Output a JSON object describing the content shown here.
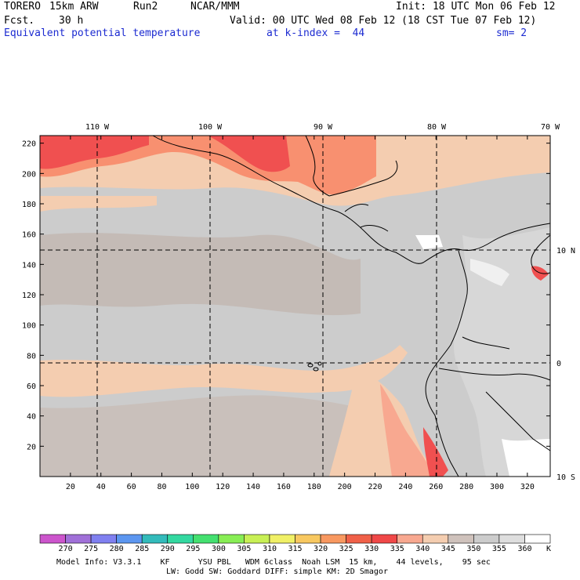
{
  "header": {
    "model": "TORERO",
    "resolution": "15km ARW",
    "run": "Run2",
    "org": "NCAR/MMM",
    "init": "Init: 18 UTC Mon 06 Feb 12",
    "fcst_label": "Fcst.",
    "fcst_value": "30 h",
    "valid": "Valid: 00 UTC Wed 08 Feb 12 (18 CST Tue 07 Feb 12)",
    "field": "Equivalent potential temperature",
    "level": "at k-index =  44",
    "smoothing": "sm= 2"
  },
  "map": {
    "lon_labels": [
      "110 W",
      "100 W",
      "90 W",
      "80 W",
      "70 W"
    ],
    "lat_labels": [
      "10 N",
      "0",
      "10 S"
    ],
    "y_ticks": [
      "220",
      "200",
      "180",
      "160",
      "140",
      "120",
      "100",
      "80",
      "60",
      "40",
      "20"
    ],
    "x_ticks": [
      "20",
      "40",
      "60",
      "80",
      "100",
      "120",
      "140",
      "160",
      "180",
      "200",
      "220",
      "240",
      "260",
      "280",
      "300",
      "320"
    ],
    "x_range": [
      0,
      335
    ],
    "y_range": [
      0,
      225
    ],
    "dominant_color": "#cccccc"
  },
  "colorbar": {
    "labels": [
      "270",
      "275",
      "280",
      "285",
      "290",
      "295",
      "300",
      "305",
      "310",
      "315",
      "320",
      "325",
      "330",
      "335",
      "340",
      "345",
      "350",
      "355",
      "360"
    ],
    "unit": "K",
    "colors": [
      "#cc55cc",
      "#a070d8",
      "#8080f0",
      "#5c96f0",
      "#33bbbb",
      "#33d8a0",
      "#44e070",
      "#88ee55",
      "#c8f055",
      "#f0f066",
      "#f8c860",
      "#f89860",
      "#f06048",
      "#f04848",
      "#f8a890",
      "#f4cdb0",
      "#cfc2bc",
      "#cccccc",
      "#dedede",
      "#ffffff"
    ]
  },
  "footer": {
    "line1": "Model Info: V3.3.1    KF      YSU PBL   WDM 6class  Noah LSM  15 km,    44 levels,    95 sec",
    "line2": "LW: Godd SW: Goddard DIFF: simple KM: 2D Smagor"
  }
}
